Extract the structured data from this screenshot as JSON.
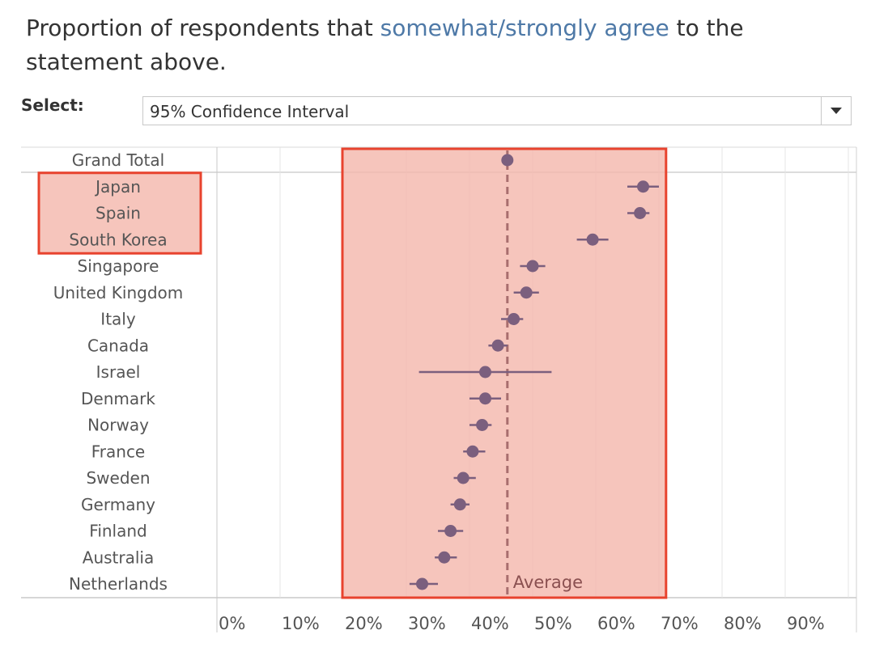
{
  "header": {
    "title_pre": "Proportion of respondents that ",
    "title_highlight": "somewhat/strongly agree",
    "title_post": " to the statement above."
  },
  "filter": {
    "label": "Select:",
    "selected": "95% Confidence Interval",
    "icon": "chevron-down-icon"
  },
  "colors": {
    "point": "#7b5f7e",
    "highlight_fill": "#f4b6ab",
    "highlight_border": "#e8432e",
    "average_line": "#a86e6e",
    "grid": "#e4e4e4"
  },
  "chart_data": {
    "type": "scatter",
    "title": "Proportion of respondents that somewhat/strongly agree to the statement above.",
    "xlabel": "",
    "ylabel": "",
    "xlim": [
      0,
      100
    ],
    "x_ticks": [
      "0%",
      "10%",
      "20%",
      "30%",
      "40%",
      "50%",
      "60%",
      "70%",
      "80%",
      "90%"
    ],
    "grid": true,
    "average": {
      "label": "Average",
      "value": 46
    },
    "highlight_band": [
      20,
      71
    ],
    "highlighted_categories": [
      "Japan",
      "Spain",
      "South Korea"
    ],
    "categories": [
      "Grand Total",
      "Japan",
      "Spain",
      "South Korea",
      "Singapore",
      "United Kingdom",
      "Italy",
      "Canada",
      "Israel",
      "Denmark",
      "Norway",
      "France",
      "Sweden",
      "Germany",
      "Finland",
      "Australia",
      "Netherlands"
    ],
    "values": [
      46,
      67.5,
      67,
      59.5,
      50,
      49,
      47,
      44.5,
      42.5,
      42.5,
      42,
      40.5,
      39,
      38.5,
      37,
      36,
      32.5
    ],
    "ci_low": [
      46,
      65,
      65,
      57,
      48,
      47,
      45,
      43,
      32,
      40,
      40,
      39,
      37.5,
      37,
      35,
      34.5,
      30.5
    ],
    "ci_high": [
      46,
      70,
      68.5,
      62,
      52,
      51,
      48.5,
      46,
      53,
      45,
      43.5,
      42.5,
      41,
      40,
      39,
      38,
      35
    ]
  }
}
